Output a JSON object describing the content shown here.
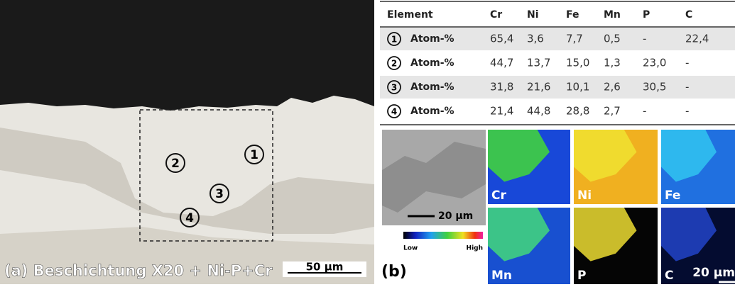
{
  "micrograph": {
    "caption": "(a) Beschichtung X20 + Ni-P+Cr",
    "scale_bar": "50 µm",
    "markers": [
      "1",
      "2",
      "3",
      "4"
    ]
  },
  "panel_b_label": "(b)",
  "table": {
    "header": [
      "Element",
      "Cr",
      "Ni",
      "Fe",
      "Mn",
      "P",
      "C"
    ],
    "rows": [
      [
        "1",
        "Atom-%",
        "65,4",
        "3,6",
        "7,7",
        "0,5",
        "-",
        "22,4"
      ],
      [
        "2",
        "Atom-%",
        "44,7",
        "13,7",
        "15,0",
        "1,3",
        "23,0",
        "-"
      ],
      [
        "3",
        "Atom-%",
        "31,8",
        "21,6",
        "10,1",
        "2,6",
        "30,5",
        "-"
      ],
      [
        "4",
        "Atom-%",
        "21,4",
        "44,8",
        "28,8",
        "2,7",
        "-",
        "-"
      ]
    ]
  },
  "sem": {
    "scale_bar": "20 µm"
  },
  "colorbar": {
    "low": "Low",
    "high": "High"
  },
  "maps": [
    "Cr",
    "Ni",
    "Fe",
    "Mn",
    "P",
    "C"
  ],
  "maps_scale_bar": "20 µm"
}
